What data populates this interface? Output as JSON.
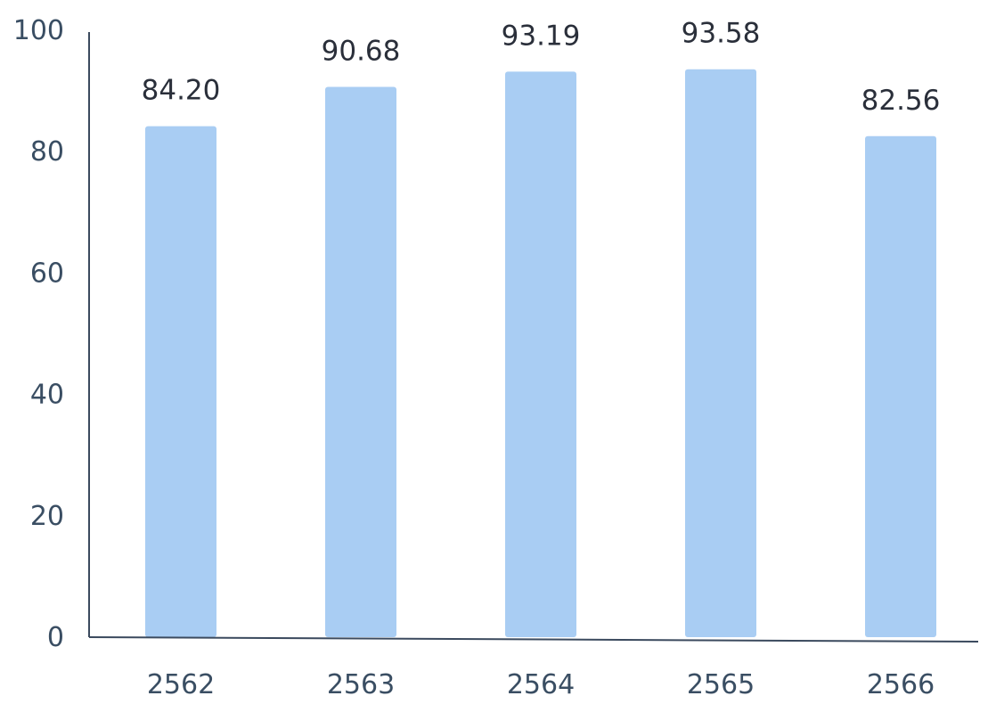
{
  "chart_data": {
    "type": "bar",
    "categories": [
      "2562",
      "2563",
      "2564",
      "2565",
      "2566"
    ],
    "values": [
      84.2,
      90.68,
      93.19,
      93.58,
      82.56
    ],
    "data_labels": [
      "84.20",
      "90.68",
      "93.19",
      "93.58",
      "82.56"
    ],
    "title": "",
    "xlabel": "",
    "ylabel": "",
    "ylim": [
      0,
      100
    ],
    "yticks": [
      "0",
      "20",
      "40",
      "60",
      "80",
      "100"
    ],
    "grid": false,
    "legend": "none",
    "bar_color": "#a9cdf3",
    "axis_color": "#3b4a5e",
    "text_color": "#3a4e63"
  }
}
